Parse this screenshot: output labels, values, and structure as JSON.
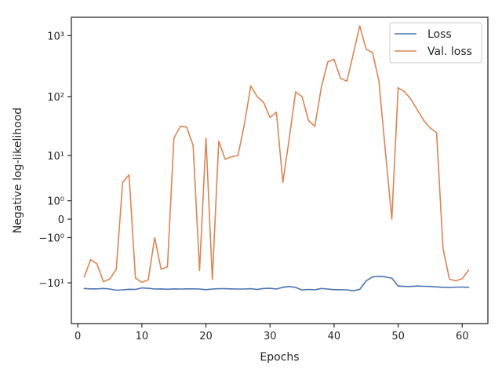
{
  "chart_data": {
    "type": "line",
    "xlabel": "Epochs",
    "ylabel": "Negative log-likelihood",
    "yscale": "symlog",
    "xlim": [
      -1.0,
      64.0
    ],
    "ylim": [
      -50,
      2000
    ],
    "xticks": [
      0,
      10,
      20,
      30,
      40,
      50,
      60
    ],
    "xtick_labels": [
      "0",
      "10",
      "20",
      "30",
      "40",
      "50",
      "60"
    ],
    "yticks": [
      -10,
      -1,
      0,
      1,
      10,
      100,
      1000
    ],
    "ytick_labels": [
      "−10¹",
      "−10⁰",
      "0",
      "10⁰",
      "10¹",
      "10²",
      "10³"
    ],
    "legend_position": "top-right",
    "grid": false,
    "x": [
      1,
      2,
      3,
      4,
      5,
      6,
      7,
      8,
      9,
      10,
      11,
      12,
      13,
      14,
      15,
      16,
      17,
      18,
      19,
      20,
      21,
      22,
      23,
      24,
      25,
      26,
      27,
      28,
      29,
      30,
      31,
      32,
      33,
      34,
      35,
      36,
      37,
      38,
      39,
      40,
      41,
      42,
      43,
      44,
      45,
      46,
      47,
      48,
      49,
      50,
      51,
      52,
      53,
      54,
      55,
      56,
      57,
      58,
      59,
      60,
      61
    ],
    "series": [
      {
        "name": "Loss",
        "color": "#4c72b0",
        "values": [
          -12.6,
          -12.8,
          -12.8,
          -12.6,
          -12.9,
          -13.5,
          -13.3,
          -13.0,
          -13.1,
          -12.3,
          -12.5,
          -12.9,
          -12.8,
          -13.0,
          -12.8,
          -12.9,
          -12.8,
          -12.8,
          -12.9,
          -13.2,
          -12.9,
          -12.7,
          -12.7,
          -12.8,
          -12.9,
          -12.9,
          -12.7,
          -13.1,
          -12.6,
          -12.5,
          -12.9,
          -12.0,
          -11.6,
          -12.1,
          -13.4,
          -13.1,
          -13.3,
          -12.6,
          -12.9,
          -13.2,
          -13.2,
          -13.3,
          -13.8,
          -13.1,
          -9.2,
          -7.8,
          -7.6,
          -7.8,
          -8.2,
          -11.4,
          -11.6,
          -11.6,
          -11.4,
          -11.5,
          -11.6,
          -11.8,
          -12.0,
          -12.1,
          -11.9,
          -11.9,
          -12.0
        ]
      },
      {
        "name": "Val. loss",
        "color": "#dd8452",
        "values": [
          -7.8,
          -3.6,
          -4.4,
          -9.5,
          -8.5,
          -5.6,
          3.0,
          4.3,
          -8.2,
          -9.8,
          -8.8,
          -1.0,
          -5.6,
          -5.0,
          20,
          32,
          31,
          15,
          -5.9,
          20,
          -8.7,
          18,
          8.5,
          9.5,
          10,
          35,
          150,
          100,
          80,
          45,
          55,
          3,
          20,
          120,
          100,
          40,
          32,
          140,
          370,
          410,
          200,
          180,
          500,
          1450,
          600,
          530,
          180,
          12,
          0,
          140,
          120,
          90,
          60,
          40,
          30,
          25,
          -2.0,
          -8.6,
          -9.2,
          -8.4,
          -5.8
        ]
      }
    ]
  }
}
